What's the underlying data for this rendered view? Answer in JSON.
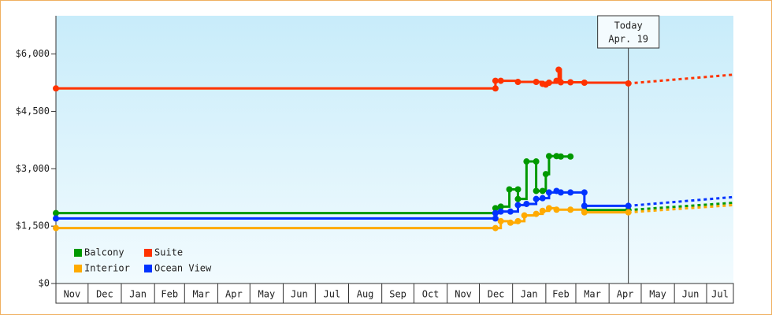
{
  "chart_data": {
    "type": "step-line",
    "xlim": [
      0,
      632
    ],
    "xticks": [
      {
        "value": 0,
        "label": "Nov"
      },
      {
        "value": 30,
        "label": "Dec"
      },
      {
        "value": 61,
        "label": "Jan"
      },
      {
        "value": 92,
        "label": "Feb"
      },
      {
        "value": 120,
        "label": "Mar"
      },
      {
        "value": 151,
        "label": "Apr"
      },
      {
        "value": 181,
        "label": "May"
      },
      {
        "value": 212,
        "label": "Jun"
      },
      {
        "value": 242,
        "label": "Jul"
      },
      {
        "value": 273,
        "label": "Aug"
      },
      {
        "value": 304,
        "label": "Sep"
      },
      {
        "value": 334,
        "label": "Oct"
      },
      {
        "value": 365,
        "label": "Nov"
      },
      {
        "value": 395,
        "label": "Dec"
      },
      {
        "value": 426,
        "label": "Jan"
      },
      {
        "value": 457,
        "label": "Feb"
      },
      {
        "value": 485,
        "label": "Mar"
      },
      {
        "value": 516,
        "label": "Apr"
      },
      {
        "value": 546,
        "label": "May"
      },
      {
        "value": 577,
        "label": "Jun"
      },
      {
        "value": 607,
        "label": "Jul"
      }
    ],
    "ylim": [
      0,
      7000
    ],
    "yticks": [
      {
        "value": 0,
        "label": "$0"
      },
      {
        "value": 1500,
        "label": "$1,500"
      },
      {
        "value": 3000,
        "label": "$3,000"
      },
      {
        "value": 4500,
        "label": "$4,500"
      },
      {
        "value": 6000,
        "label": "$6,000"
      }
    ],
    "annotation": {
      "x": 534,
      "lines": [
        "Today",
        "Apr. 19"
      ]
    },
    "series": [
      {
        "name": "Balcony",
        "color": "#009900",
        "x": [
          0,
          410,
          410,
          415,
          423,
          431,
          431,
          439,
          448,
          448,
          454,
          457,
          460,
          467,
          471,
          480,
          null,
          493,
          534
        ],
        "values": [
          1840,
          1840,
          1970,
          2010,
          2460,
          2460,
          2210,
          3190,
          3190,
          2420,
          2420,
          2860,
          3330,
          3330,
          3320,
          3320,
          null,
          1920,
          1920
        ],
        "projection": {
          "x": [
            534,
            632
          ],
          "values": [
            1920,
            2110
          ]
        }
      },
      {
        "name": "Suite",
        "color": "#ff3300",
        "x": [
          0,
          410,
          410,
          415,
          431,
          448,
          454,
          457,
          460,
          467,
          469,
          471,
          480,
          493,
          534
        ],
        "values": [
          5100,
          5100,
          5300,
          5300,
          5270,
          5270,
          5220,
          5200,
          5250,
          5300,
          5590,
          5260,
          5260,
          5250,
          5230
        ],
        "projection": {
          "x": [
            534,
            632
          ],
          "values": [
            5230,
            5460
          ]
        }
      },
      {
        "name": "Interior",
        "color": "#ffaa00",
        "x": [
          0,
          410,
          415,
          424,
          431,
          437,
          448,
          454,
          460,
          467,
          480,
          493,
          534
        ],
        "values": [
          1450,
          1450,
          1630,
          1590,
          1630,
          1780,
          1820,
          1900,
          1970,
          1930,
          1930,
          1860,
          1860
        ],
        "projection": {
          "x": [
            534,
            632
          ],
          "values": [
            1860,
            2050
          ]
        }
      },
      {
        "name": "Ocean View",
        "color": "#0033ff",
        "x": [
          0,
          410,
          410,
          415,
          424,
          431,
          439,
          448,
          454,
          460,
          467,
          471,
          480,
          493,
          493,
          534
        ],
        "values": [
          1700,
          1700,
          1840,
          1880,
          1880,
          2050,
          2080,
          2210,
          2230,
          2380,
          2420,
          2380,
          2380,
          2380,
          2030,
          2030
        ],
        "projection": {
          "x": [
            534,
            632
          ],
          "values": [
            2030,
            2260
          ]
        }
      }
    ]
  }
}
